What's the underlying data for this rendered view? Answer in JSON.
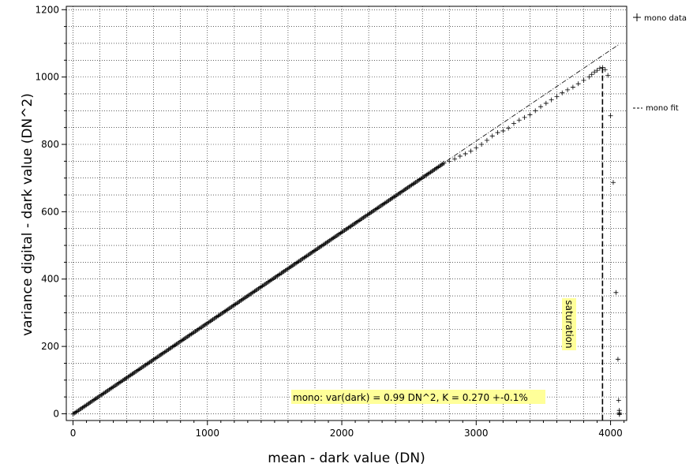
{
  "chart_data": {
    "type": "scatter",
    "xlabel": "mean - dark value (DN)",
    "ylabel": "variance digital - dark value (DN^2)",
    "xlim": [
      -50,
      4120
    ],
    "ylim": [
      -20,
      1210
    ],
    "x_ticks": [
      0,
      1000,
      2000,
      3000,
      4000
    ],
    "y_ticks": [
      0,
      200,
      400,
      600,
      800,
      1000,
      1200
    ],
    "x_minor_step": 100,
    "y_minor_step": 50,
    "grid": true,
    "legend_position": "right",
    "series": [
      {
        "name": "mono data",
        "marker": "+",
        "linear_segment": {
          "x_start": 0,
          "x_end": 2760,
          "step": 10,
          "slope": 0.27,
          "intercept": -1
        },
        "points": [
          [
            2800,
            750
          ],
          [
            2840,
            757
          ],
          [
            2880,
            765
          ],
          [
            2920,
            772
          ],
          [
            2960,
            780
          ],
          [
            3000,
            790
          ],
          [
            3040,
            800
          ],
          [
            3080,
            812
          ],
          [
            3120,
            825
          ],
          [
            3160,
            835
          ],
          [
            3200,
            840
          ],
          [
            3240,
            848
          ],
          [
            3280,
            862
          ],
          [
            3320,
            872
          ],
          [
            3360,
            880
          ],
          [
            3400,
            888
          ],
          [
            3440,
            900
          ],
          [
            3480,
            912
          ],
          [
            3520,
            922
          ],
          [
            3560,
            932
          ],
          [
            3600,
            942
          ],
          [
            3640,
            953
          ],
          [
            3680,
            962
          ],
          [
            3720,
            970
          ],
          [
            3760,
            980
          ],
          [
            3800,
            990
          ],
          [
            3840,
            1000
          ],
          [
            3860,
            1008
          ],
          [
            3880,
            1015
          ],
          [
            3900,
            1020
          ],
          [
            3920,
            1026
          ],
          [
            3940,
            1028
          ],
          [
            3960,
            1022
          ],
          [
            3980,
            1005
          ],
          [
            4000,
            885
          ],
          [
            4020,
            687
          ],
          [
            4040,
            360
          ],
          [
            4055,
            162
          ],
          [
            4060,
            40
          ],
          [
            4065,
            10
          ],
          [
            4065,
            3
          ],
          [
            4066,
            0
          ],
          [
            4066,
            -2
          ]
        ]
      },
      {
        "name": "mono fit",
        "line_style": "dash-dot",
        "slope": 0.27,
        "intercept": 0,
        "x_range": [
          0,
          4060
        ]
      }
    ],
    "saturation": {
      "x": 3940,
      "label": "saturation"
    },
    "annotation": "mono: var(dark) = 0.99 DN^2, K = 0.270 +-0.1%"
  },
  "colors": {
    "highlight": "#ffff99",
    "grid": "#000000",
    "marker": "#000000"
  }
}
